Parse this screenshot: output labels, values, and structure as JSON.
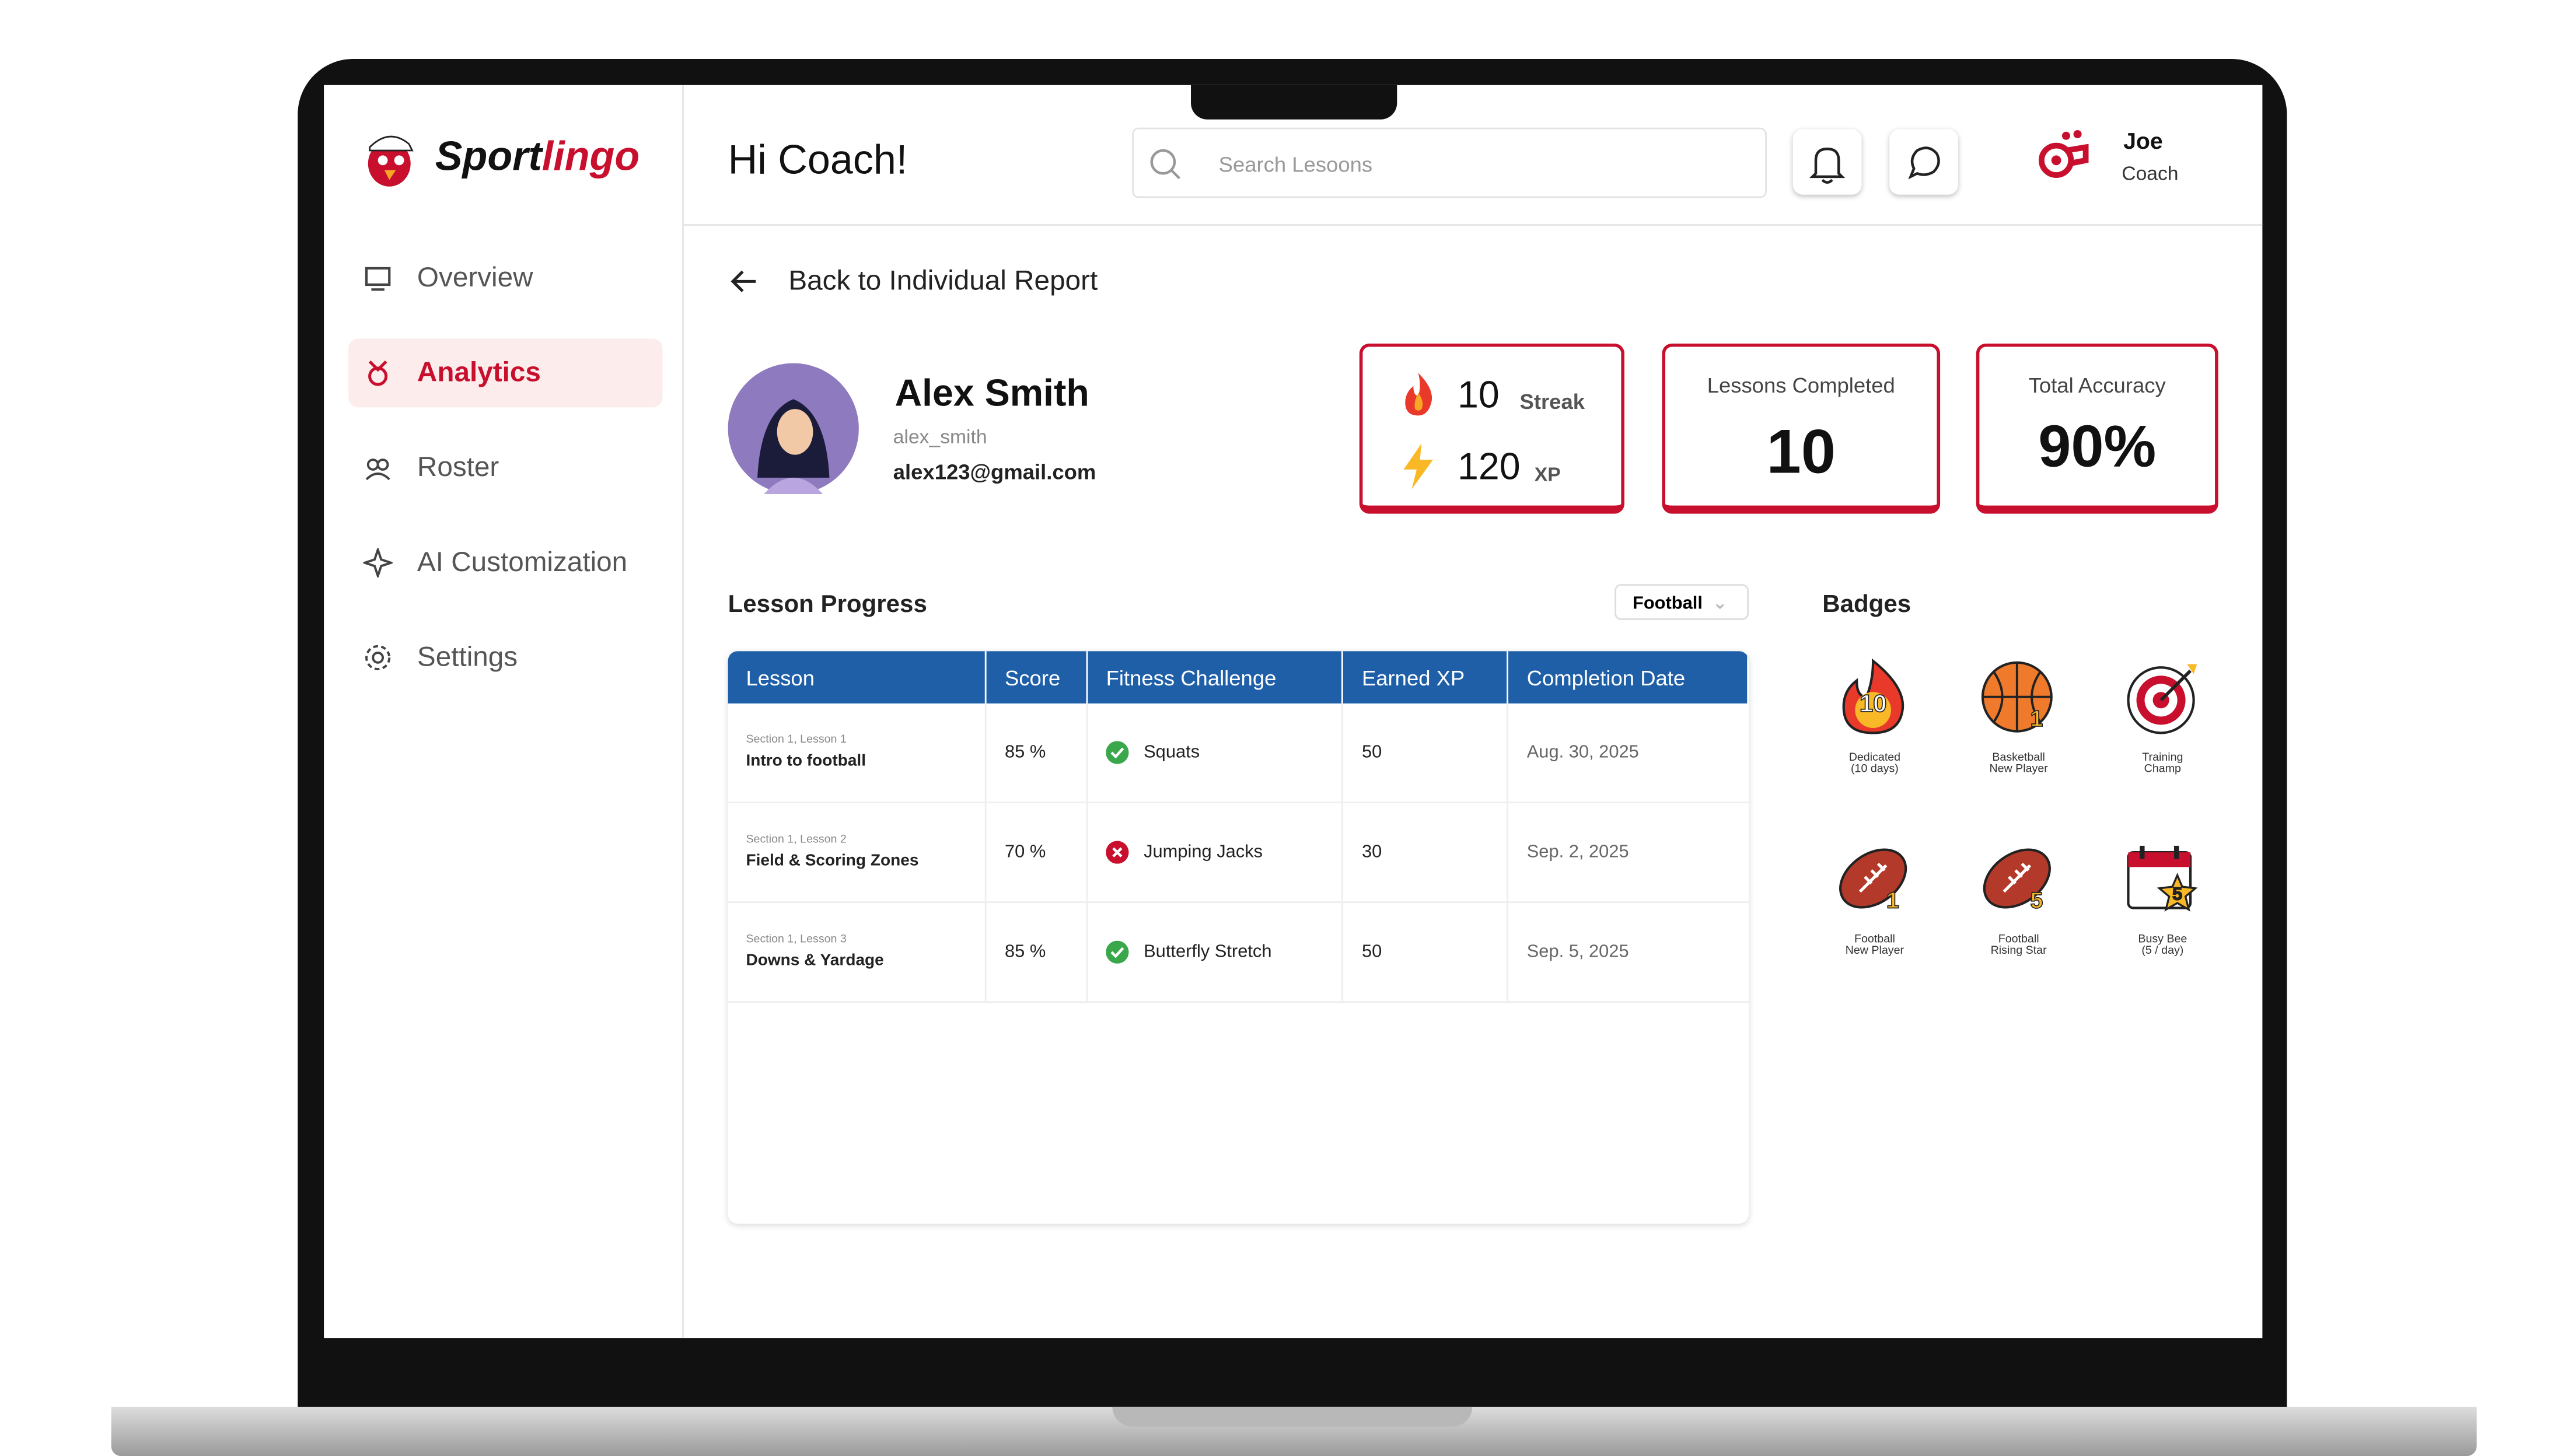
{
  "brand": {
    "parts": [
      "Sport",
      "lingo"
    ]
  },
  "nav": [
    {
      "label": "Overview",
      "active": false
    },
    {
      "label": "Analytics",
      "active": true
    },
    {
      "label": "Roster",
      "active": false
    },
    {
      "label": "AI Customization",
      "active": false
    },
    {
      "label": "Settings",
      "active": false
    }
  ],
  "header": {
    "greeting": "Hi Coach!",
    "search_placeholder": "Search Lesoons",
    "user_name": "Joe",
    "user_role": "Coach"
  },
  "back_link": "Back to Individual Report",
  "profile": {
    "name": "Alex Smith",
    "username": "alex_smith",
    "email": "alex123@gmail.com"
  },
  "stats": {
    "streak": {
      "value": "10",
      "label": "Streak"
    },
    "xp": {
      "value": "120",
      "label": "XP"
    },
    "lessons": {
      "label": "Lessons Completed",
      "value": "10"
    },
    "accuracy": {
      "label": "Total Accuracy",
      "value": "90%"
    }
  },
  "lesson_progress": {
    "title": "Lesson Progress",
    "filter": "Football",
    "columns": [
      "Lesson",
      "Score",
      "Fitness Challenge",
      "Earned XP",
      "Completion Date"
    ],
    "rows": [
      {
        "section": "Section 1, Lesson 1",
        "lesson": "Intro to football",
        "score": "85 %",
        "challenge": "Squats",
        "passed": true,
        "xp": "50",
        "date": "Aug. 30, 2025"
      },
      {
        "section": "Section 1, Lesson 2",
        "lesson": "Field & Scoring Zones",
        "score": "70 %",
        "challenge": "Jumping Jacks",
        "passed": false,
        "xp": "30",
        "date": "Sep. 2, 2025"
      },
      {
        "section": "Section 1, Lesson 3",
        "lesson": "Downs & Yardage",
        "score": "85 %",
        "challenge": "Butterfly Stretch",
        "passed": true,
        "xp": "50",
        "date": "Sep. 5, 2025"
      }
    ]
  },
  "badges": {
    "title": "Badges",
    "items": [
      {
        "kind": "flame",
        "icon_text": "10",
        "lines": [
          "Dedicated",
          "(10 days)"
        ]
      },
      {
        "kind": "basketball",
        "icon_text": "1",
        "lines": [
          "Basketball",
          "New Player"
        ]
      },
      {
        "kind": "target",
        "lines": [
          "Training",
          "Champ"
        ]
      },
      {
        "kind": "football",
        "icon_text": "1",
        "lines": [
          "Football",
          "New Player"
        ]
      },
      {
        "kind": "football",
        "icon_text": "5",
        "lines": [
          "Football",
          "Rising Star"
        ]
      },
      {
        "kind": "calendar",
        "icon_text": "5",
        "lines": [
          "Busy Bee",
          "(5 / day)"
        ]
      }
    ]
  }
}
